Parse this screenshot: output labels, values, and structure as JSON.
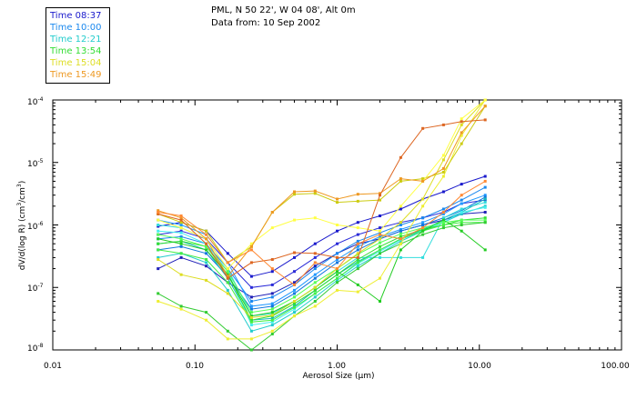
{
  "header": {
    "location": "PML, N 50 22', W 04 08', Alt 0m",
    "date": "Data from: 10 Sep 2002"
  },
  "legend": [
    {
      "label": "Time 08:37",
      "color": "#1a1acc"
    },
    {
      "label": "Time 10:00",
      "color": "#1a88ee"
    },
    {
      "label": "Time 12:21",
      "color": "#22cccc"
    },
    {
      "label": "Time 13:54",
      "color": "#33dd33"
    },
    {
      "label": "Time 15:04",
      "color": "#dddd22"
    },
    {
      "label": "Time 15:49",
      "color": "#ee9922"
    }
  ],
  "chart_data": {
    "type": "line",
    "title": "PML, N 50 22', W 04 08', Alt 0m",
    "xlabel_prefix": "Aerosol Size (",
    "xlabel_unit": "µm",
    "xlabel_suffix": ")",
    "ylabel_prefix": "dV/d(log R) (cm",
    "ylabel_mid": "/cm",
    "ylabel_suffix": ")",
    "ylabel_sup": "3",
    "xscale": "log",
    "yscale": "log",
    "xlim": [
      0.01,
      100
    ],
    "ylim": [
      1e-08,
      0.0001
    ],
    "x_ticks": [
      "0.01",
      "0.10",
      "1.00",
      "10.00",
      "100.00"
    ],
    "y_ticks": [
      {
        "base": "10",
        "exp": "-4"
      },
      {
        "base": "10",
        "exp": "-5"
      },
      {
        "base": "10",
        "exp": "-6"
      },
      {
        "base": "10",
        "exp": "-7"
      },
      {
        "base": "10",
        "exp": "-8"
      }
    ],
    "x": [
      0.055,
      0.08,
      0.12,
      0.17,
      0.25,
      0.35,
      0.5,
      0.7,
      1.0,
      1.4,
      2.0,
      2.8,
      4.0,
      5.6,
      7.5,
      11.0
    ],
    "series": [
      {
        "name": "08:37",
        "color": "#1a1acc",
        "values": [
          9.5e-07,
          1.1e-06,
          8e-07,
          3.5e-07,
          1.5e-07,
          1.8e-07,
          3e-07,
          5e-07,
          8e-07,
          1.1e-06,
          1.4e-06,
          1.8e-06,
          2.6e-06,
          3.4e-06,
          4.5e-06,
          6e-06
        ]
      },
      {
        "name": "08:37",
        "color": "#2020b8",
        "values": [
          2e-07,
          3e-07,
          2.2e-07,
          1.2e-07,
          7e-08,
          8e-08,
          1.2e-07,
          2.2e-07,
          3.5e-07,
          5e-07,
          6e-07,
          8e-07,
          1e-06,
          1.2e-06,
          1.5e-06,
          1.6e-06
        ]
      },
      {
        "name": "08:37",
        "color": "#2a2ad8",
        "values": [
          7e-07,
          8e-07,
          6e-07,
          2.5e-07,
          1e-07,
          1.1e-07,
          1.8e-07,
          3e-07,
          5e-07,
          7e-07,
          9e-07,
          1.1e-06,
          1.3e-06,
          1.6e-06,
          2.2e-06,
          2.5e-06
        ]
      },
      {
        "name": "10:00",
        "color": "#1a88ee",
        "values": [
          6e-07,
          6.5e-07,
          5e-07,
          2e-07,
          6e-08,
          7e-08,
          1.1e-07,
          2e-07,
          3.5e-07,
          5.5e-07,
          7.5e-07,
          1e-06,
          1.3e-06,
          1.8e-06,
          2.5e-06,
          4e-06
        ]
      },
      {
        "name": "10:00",
        "color": "#2299ff",
        "values": [
          1.2e-06,
          1e-06,
          7e-07,
          2.5e-07,
          5e-08,
          5.5e-08,
          9e-08,
          1.6e-07,
          2.8e-07,
          4.5e-07,
          6.5e-07,
          8.5e-07,
          1.1e-06,
          1.5e-06,
          2.2e-06,
          3e-06
        ]
      },
      {
        "name": "10:00",
        "color": "#1177dd",
        "values": [
          4e-07,
          4.5e-07,
          3.5e-07,
          1.5e-07,
          4.5e-08,
          5e-08,
          8e-08,
          1.4e-07,
          2.5e-07,
          4e-07,
          6e-07,
          8e-07,
          1e-06,
          1.3e-06,
          1.7e-06,
          2.8e-06
        ]
      },
      {
        "name": "12:21",
        "color": "#22cccc",
        "values": [
          3e-07,
          3.5e-07,
          2.5e-07,
          9e-08,
          2e-08,
          2.5e-08,
          4e-08,
          7e-08,
          1.3e-07,
          2.2e-07,
          3.5e-07,
          5.5e-07,
          8e-07,
          1.1e-06,
          1.5e-06,
          2e-06
        ]
      },
      {
        "name": "12:21",
        "color": "#33dddd",
        "values": [
          1e-06,
          9e-07,
          6e-07,
          2e-07,
          3.5e-08,
          3.8e-08,
          6e-08,
          1e-07,
          1.8e-07,
          3e-07,
          3e-07,
          3e-07,
          3e-07,
          1.3e-06,
          1.8e-06,
          2.3e-06
        ]
      },
      {
        "name": "12:21",
        "color": "#11bbbb",
        "values": [
          5e-07,
          5.5e-07,
          4e-07,
          1.4e-07,
          3e-08,
          3.2e-08,
          5e-08,
          9e-08,
          1.6e-07,
          2.6e-07,
          4e-07,
          6e-07,
          8.5e-07,
          1.2e-06,
          1.6e-06,
          2.6e-06
        ]
      },
      {
        "name": "12:21",
        "color": "#44eeee",
        "values": [
          8e-07,
          7.5e-07,
          5e-07,
          1.8e-07,
          2.5e-08,
          2.8e-08,
          4.5e-08,
          8e-08,
          1.4e-07,
          2.4e-07,
          3.8e-07,
          5.8e-07,
          8.2e-07,
          1.1e-06,
          1.6e-06,
          1.9e-06
        ]
      },
      {
        "name": "13:54",
        "color": "#33dd33",
        "values": [
          5e-07,
          5.5e-07,
          4.5e-07,
          1.6e-07,
          3e-08,
          3.5e-08,
          5.5e-08,
          9e-08,
          1.6e-07,
          2.8e-07,
          4.5e-07,
          6.5e-07,
          8.5e-07,
          1e-06,
          1.2e-06,
          1.3e-06
        ]
      },
      {
        "name": "13:54",
        "color": "#44ee44",
        "values": [
          4e-07,
          3.5e-07,
          2.8e-07,
          1.2e-07,
          2.8e-08,
          3e-08,
          4.8e-08,
          8e-08,
          1.4e-07,
          2.5e-07,
          4e-07,
          6e-07,
          8e-07,
          1e-06,
          1.1e-06,
          1.1e-06
        ]
      },
      {
        "name": "13:54",
        "color": "#22cc22",
        "values": [
          6e-07,
          5e-07,
          4e-07,
          1.6e-07,
          3.5e-08,
          4e-08,
          6e-08,
          1e-07,
          1.8e-07,
          1.1e-07,
          6e-08,
          4e-07,
          8e-07,
          1.2e-06,
          8e-07,
          4e-07
        ]
      },
      {
        "name": "13:54",
        "color": "#55ff55",
        "values": [
          7e-07,
          6e-07,
          4.5e-07,
          1.8e-07,
          4e-08,
          4.5e-08,
          7e-08,
          1.2e-07,
          2e-07,
          3.4e-07,
          5.2e-07,
          7.2e-07,
          9e-07,
          1.1e-06,
          1.2e-06,
          1.2e-06
        ]
      },
      {
        "name": "13:54",
        "color": "#33cc33",
        "values": [
          8e-08,
          5e-08,
          4e-08,
          2e-08,
          1e-08,
          1.8e-08,
          3.5e-08,
          6e-08,
          1.2e-07,
          2e-07,
          3.5e-07,
          5e-07,
          7e-07,
          9e-07,
          1e-06,
          1.1e-06
        ]
      },
      {
        "name": "15:04",
        "color": "#dddd22",
        "values": [
          2.8e-07,
          1.6e-07,
          1.3e-07,
          8e-08,
          3.3e-08,
          3.6e-08,
          6e-08,
          1e-07,
          2e-07,
          3.5e-07,
          6e-07,
          1.1e-06,
          2.6e-06,
          1.1e-05,
          4e-05,
          0.0001
        ]
      },
      {
        "name": "15:04",
        "color": "#eeee33",
        "values": [
          6e-08,
          4.5e-08,
          3e-08,
          1.5e-08,
          1.5e-08,
          2e-08,
          3.5e-08,
          5e-08,
          9e-08,
          8.5e-08,
          1.4e-07,
          5e-07,
          2e-06,
          6e-06,
          2.7e-05,
          0.0001
        ]
      },
      {
        "name": "15:04",
        "color": "#cccc11",
        "values": [
          1.5e-06,
          1.1e-06,
          8e-07,
          2.5e-07,
          4.5e-07,
          1.6e-06,
          3.1e-06,
          3.2e-06,
          2.3e-06,
          2.4e-06,
          2.5e-06,
          5e-06,
          5.5e-06,
          7e-06,
          2e-05,
          8e-05
        ]
      },
      {
        "name": "15:04",
        "color": "#ffff44",
        "values": [
          1.2e-06,
          9e-07,
          6e-07,
          2e-07,
          5e-07,
          9e-07,
          1.2e-06,
          1.3e-06,
          1e-06,
          9e-07,
          8e-07,
          2e-06,
          5e-06,
          1.3e-05,
          5e-05,
          0.0001
        ]
      },
      {
        "name": "15:49",
        "color": "#ee9922",
        "values": [
          1.7e-06,
          1.3e-06,
          6e-07,
          1.5e-07,
          4.5e-07,
          1.6e-06,
          3.4e-06,
          3.5e-06,
          2.6e-06,
          3.1e-06,
          3.2e-06,
          5.5e-06,
          5e-06,
          8e-06,
          3e-05,
          8e-05
        ]
      },
      {
        "name": "15:49",
        "color": "#dd6622",
        "values": [
          1.5e-06,
          1.2e-06,
          5e-07,
          1.4e-07,
          2.5e-07,
          2.8e-07,
          3.6e-07,
          3.5e-07,
          3e-07,
          3e-07,
          3e-06,
          1.2e-05,
          3.5e-05,
          4e-05,
          4.5e-05,
          4.8e-05
        ]
      },
      {
        "name": "15:49",
        "color": "#ff8833",
        "values": [
          1.6e-06,
          1.4e-06,
          7e-07,
          2.5e-07,
          4e-07,
          2e-07,
          1.1e-07,
          2.5e-07,
          2e-07,
          5e-07,
          7e-07,
          6e-07,
          9e-07,
          1.6e-06,
          3e-06,
          5e-06
        ]
      }
    ]
  }
}
